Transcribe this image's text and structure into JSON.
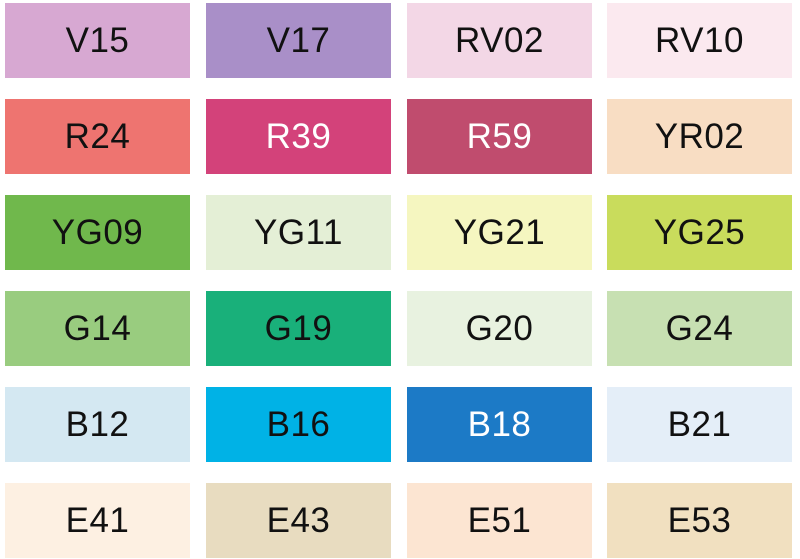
{
  "rows": [
    [
      {
        "label": "V15",
        "color": "#d7a8d2"
      },
      {
        "label": "V17",
        "color": "#a98fc8"
      },
      {
        "label": "RV02",
        "color": "#f3d7e6"
      },
      {
        "label": "RV10",
        "color": "#fbe9ef"
      }
    ],
    [
      {
        "label": "R24",
        "color": "#ee7470"
      },
      {
        "label": "R39",
        "color": "#d3427a"
      },
      {
        "label": "R59",
        "color": "#c04c6e"
      },
      {
        "label": "YR02",
        "color": "#f8ddc3"
      }
    ],
    [
      {
        "label": "YG09",
        "color": "#70b84c"
      },
      {
        "label": "YG11",
        "color": "#e4efd6"
      },
      {
        "label": "YG21",
        "color": "#f5f6c0"
      },
      {
        "label": "YG25",
        "color": "#c9dc5c"
      }
    ],
    [
      {
        "label": "G14",
        "color": "#99cc7f"
      },
      {
        "label": "G19",
        "color": "#19b07a"
      },
      {
        "label": "G20",
        "color": "#e8f2e0"
      },
      {
        "label": "G24",
        "color": "#c7e0b2"
      }
    ],
    [
      {
        "label": "B12",
        "color": "#d4e8f2"
      },
      {
        "label": "B16",
        "color": "#00b2e6"
      },
      {
        "label": "B18",
        "color": "#1c7ac6"
      },
      {
        "label": "B21",
        "color": "#e4eef8"
      }
    ],
    [
      {
        "label": "E41",
        "color": "#fdf0e2"
      },
      {
        "label": "E43",
        "color": "#e8dcc0"
      },
      {
        "label": "E51",
        "color": "#fce5d2"
      },
      {
        "label": "E53",
        "color": "#f1e0c0"
      }
    ]
  ]
}
